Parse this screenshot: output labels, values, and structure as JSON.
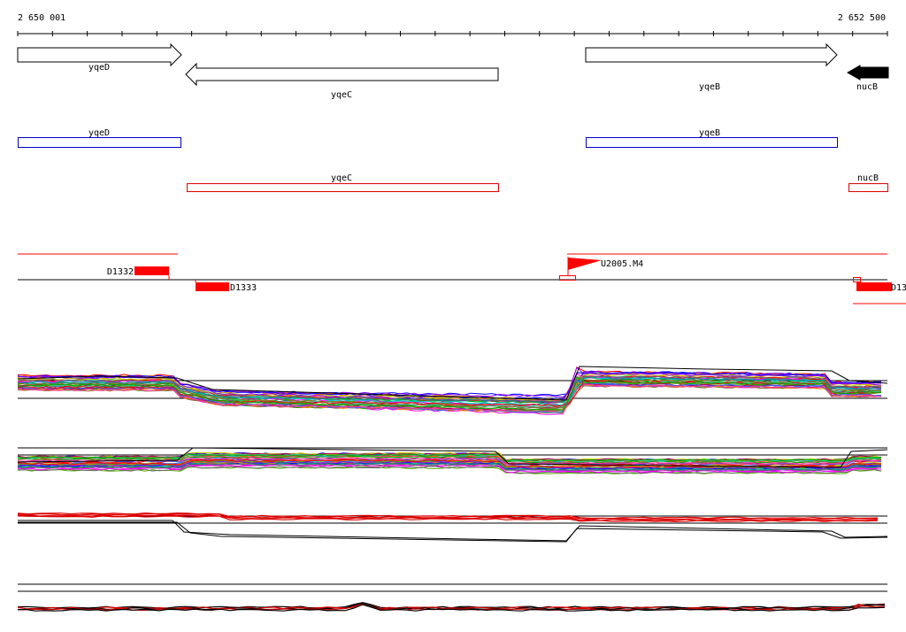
{
  "ruler": {
    "start_label": "2 650 001",
    "end_label": "2 652 500"
  },
  "genes": [
    {
      "name": "yqeD",
      "strand": "+",
      "filled": false
    },
    {
      "name": "yqeC",
      "strand": "-",
      "filled": false
    },
    {
      "name": "yqeB",
      "strand": "+",
      "filled": false
    },
    {
      "name": "nucB",
      "strand": "-",
      "filled": true
    }
  ],
  "transcripts_forward": [
    {
      "name": "yqeD",
      "color": "#0000cc"
    },
    {
      "name": "yqeB",
      "color": "#0000cc"
    }
  ],
  "transcripts_reverse": [
    {
      "name": "yqeC",
      "color": "#dd0000"
    },
    {
      "name": "nucB",
      "color": "#dd0000"
    }
  ],
  "features": [
    {
      "name": "D1332",
      "color": "#ff0000"
    },
    {
      "name": "D1333",
      "color": "#ff0000"
    },
    {
      "name": "U2005.M4",
      "color": "#ff0000"
    },
    {
      "name": "D13",
      "color": "#ff0000"
    }
  ],
  "profile_panels": [
    {
      "name": "expression-panel-1",
      "style": "multicolor"
    },
    {
      "name": "expression-panel-2",
      "style": "multicolor"
    },
    {
      "name": "expression-panel-3",
      "style": "red-black"
    },
    {
      "name": "expression-panel-4",
      "style": "red-black"
    }
  ],
  "colors": {
    "forward_transcript": "#0000cc",
    "reverse_transcript": "#dd0000",
    "feature": "#ff0000",
    "axis": "#000000"
  }
}
